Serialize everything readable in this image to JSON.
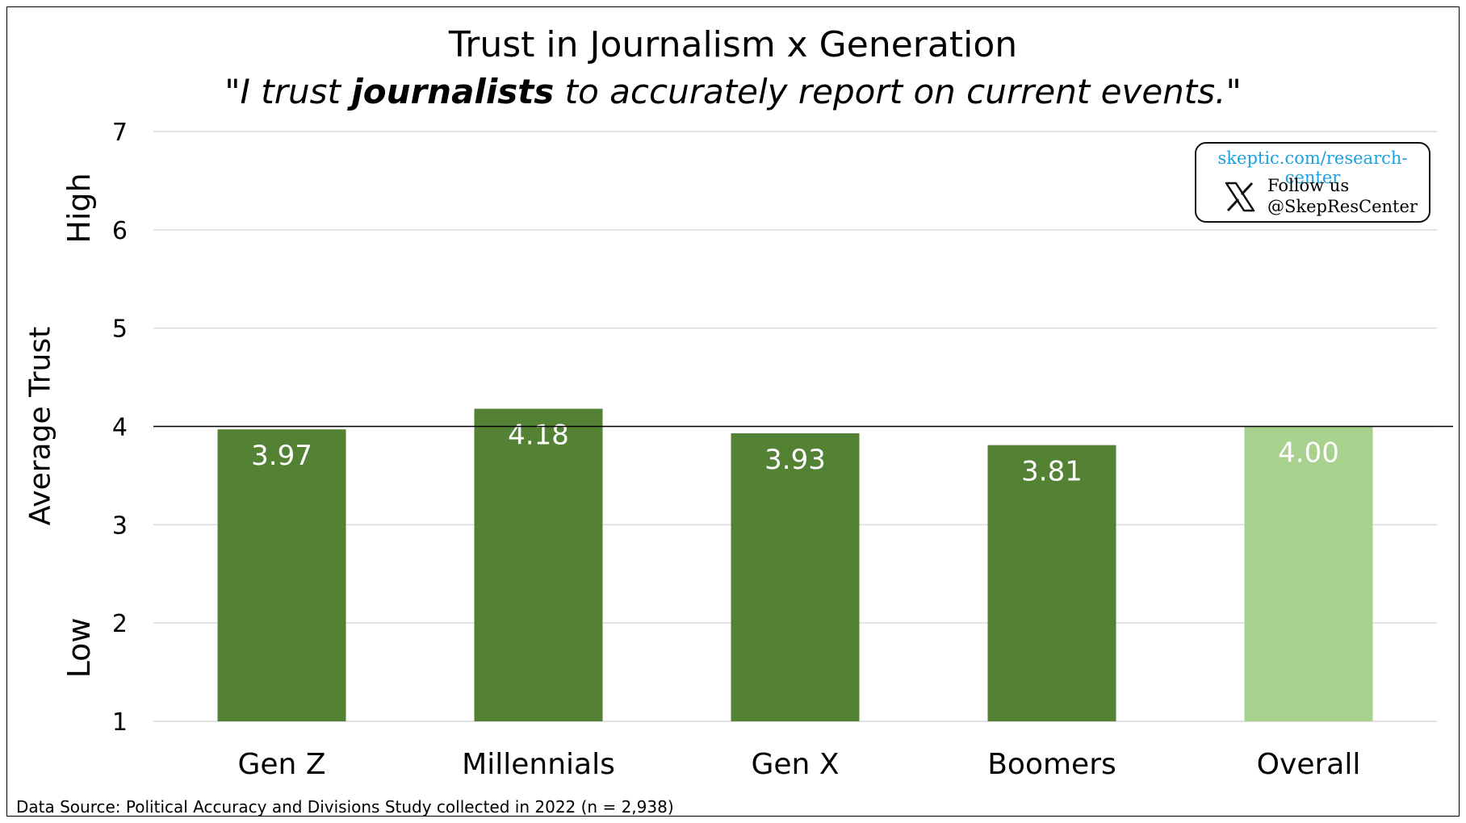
{
  "chart_data": {
    "type": "bar",
    "title": "Trust in Journalism x Generation",
    "subtitle_parts": [
      "\"I trust ",
      "journalists",
      " to accurately report on current events.\""
    ],
    "ylabel": "Average Trust",
    "ylabel_high": "High",
    "ylabel_low": "Low",
    "ylim": [
      1,
      7
    ],
    "yticks": [
      1,
      2,
      3,
      4,
      5,
      6,
      7
    ],
    "reference_line": 4,
    "grid": true,
    "categories": [
      "Gen Z",
      "Millennials",
      "Gen X",
      "Boomers",
      "Overall"
    ],
    "values": [
      3.97,
      4.18,
      3.93,
      3.81,
      4.0
    ],
    "value_labels": [
      "3.97",
      "4.18",
      "3.93",
      "3.81",
      "4.00"
    ],
    "colors": [
      "#548235",
      "#548235",
      "#548235",
      "#548235",
      "#a9d18e"
    ]
  },
  "badge": {
    "url": "skeptic.com/research-center",
    "follow": "Follow us",
    "handle": "@SkepResCenter",
    "icon": "x-logo-icon"
  },
  "source": "Data Source: Political Accuracy and Divisions Study collected in 2022 (n = 2,938)"
}
